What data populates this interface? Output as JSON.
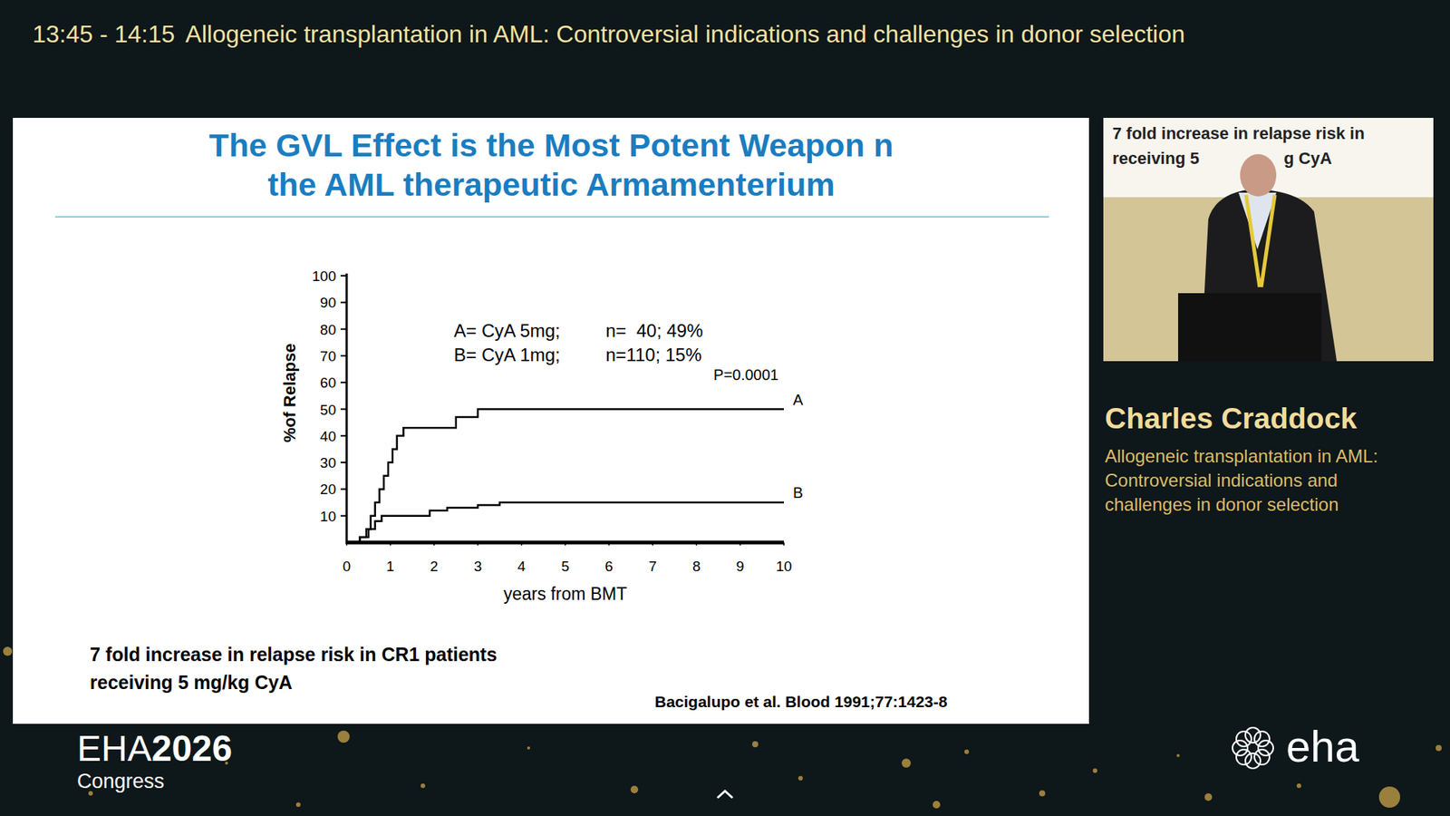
{
  "header": {
    "time": "13:45 - 14:15",
    "title": "Allogeneic transplantation in AML: Controversial indications and challenges in donor selection"
  },
  "slide": {
    "title_lines": [
      "The GVL Effect is the Most Potent Weapon n",
      "the AML therapeutic Armamenterium"
    ],
    "caption_lines": [
      "7 fold increase in relapse risk in CR1 patients",
      "receiving 5 mg/kg CyA"
    ],
    "citation": "Bacigalupo et al. Blood 1991;77:1423-8"
  },
  "chart_data": {
    "type": "line",
    "x_label": "years from BMT",
    "y_label": "%of Relapse",
    "annotations": [
      "A= CyA 5mg;",
      "n=  40; 49%",
      "B= CyA 1mg;",
      "n=110; 15%",
      "P=0.0001"
    ],
    "xlim": [
      0,
      10
    ],
    "xticks": [
      0,
      1,
      2,
      3,
      4,
      5,
      6,
      7,
      8,
      9,
      10
    ],
    "ylim": [
      0,
      100
    ],
    "yticks": [
      10,
      20,
      30,
      40,
      50,
      60,
      70,
      80,
      90,
      100
    ],
    "grid": false,
    "line_style": "steps",
    "series": [
      {
        "name": "A",
        "color": "#000000",
        "x": [
          0,
          0.3,
          0.45,
          0.55,
          0.65,
          0.75,
          0.85,
          0.95,
          1.05,
          1.15,
          1.3,
          2.5,
          3.0,
          10
        ],
        "values": [
          0,
          2,
          5,
          10,
          15,
          20,
          25,
          30,
          35,
          40,
          43,
          47,
          50,
          50
        ]
      },
      {
        "name": "B",
        "color": "#000000",
        "x": [
          0,
          0.3,
          0.5,
          0.65,
          0.8,
          1.2,
          1.9,
          2.3,
          3.0,
          3.5,
          10
        ],
        "values": [
          0,
          2,
          5,
          8,
          10,
          10,
          12,
          13,
          14,
          15,
          15
        ]
      }
    ]
  },
  "speaker": {
    "video_text_lines": [
      "7 fold increase in relapse risk in",
      "receiving 5",
      "g CyA"
    ],
    "name": "Charles Craddock",
    "talk_lines": [
      "Allogeneic transplantation in AML:",
      "Controversial indications and",
      "challenges in donor selection"
    ]
  },
  "footer": {
    "event": "EHA",
    "year": "2026",
    "subtitle": "Congress",
    "logo": "eha"
  }
}
